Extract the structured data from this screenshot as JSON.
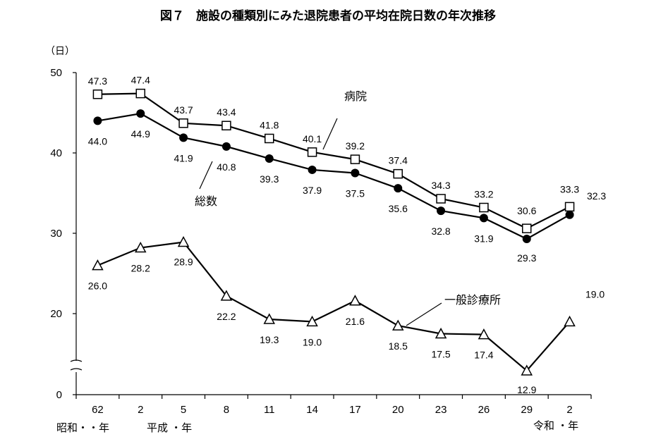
{
  "title": "図７　施設の種類別にみた退院患者の平均在院日数の年次推移",
  "chart_data": {
    "type": "line",
    "title": "図７　施設の種類別にみた退院患者の平均在院日数の年次推移",
    "ylabel": "（日）",
    "ylim": [
      0,
      50
    ],
    "yticks": [
      "0",
      "20",
      "30",
      "40",
      "50"
    ],
    "axis_break": "below 20",
    "categories": [
      "62",
      "2",
      "5",
      "8",
      "11",
      "14",
      "17",
      "20",
      "23",
      "26",
      "29",
      "2"
    ],
    "era_labels": [
      "昭和・・年",
      "平成 ・年",
      "令和 ・年"
    ],
    "series": [
      {
        "name": "病院",
        "marker": "open-square",
        "values": [
          47.3,
          47.4,
          43.7,
          43.4,
          41.8,
          40.1,
          39.2,
          37.4,
          34.3,
          33.2,
          30.6,
          33.3
        ],
        "labels": [
          "47.3",
          "47.4",
          "43.7",
          "43.4",
          "41.8",
          "40.1",
          "39.2",
          "37.4",
          "34.3",
          "33.2",
          "30.6",
          "33.3"
        ]
      },
      {
        "name": "総数",
        "marker": "filled-circle",
        "values": [
          44.0,
          44.9,
          41.9,
          40.8,
          39.3,
          37.9,
          37.5,
          35.6,
          32.8,
          31.9,
          29.3,
          32.3
        ],
        "labels": [
          "44.0",
          "44.9",
          "41.9",
          "40.8",
          "39.3",
          "37.9",
          "37.5",
          "35.6",
          "32.8",
          "31.9",
          "29.3",
          "32.3"
        ]
      },
      {
        "name": "一般診療所",
        "marker": "open-triangle",
        "values": [
          26.0,
          28.2,
          28.9,
          22.2,
          19.3,
          19.0,
          21.6,
          18.5,
          17.5,
          17.4,
          12.9,
          19.0
        ],
        "labels": [
          "26.0",
          "28.2",
          "28.9",
          "22.2",
          "19.3",
          "19.0",
          "21.6",
          "18.5",
          "17.5",
          "17.4",
          "12.9",
          "19.0"
        ]
      }
    ],
    "grid": false,
    "legend": "inline-callouts"
  }
}
